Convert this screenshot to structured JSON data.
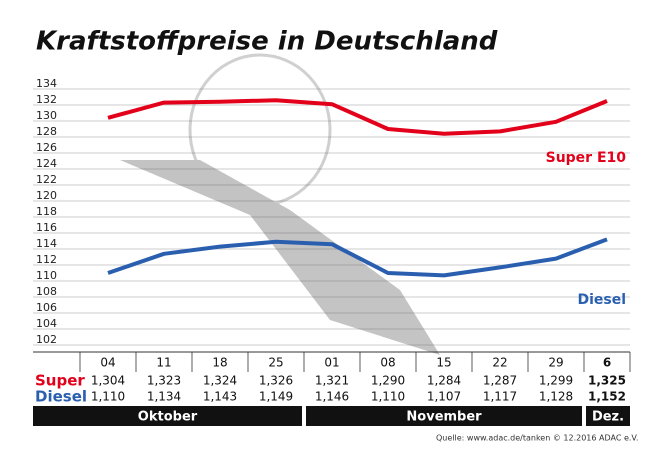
{
  "chart_data": {
    "type": "line",
    "title": "Kraftstoffpreise in Deutschland",
    "categories": [
      "04",
      "11",
      "18",
      "25",
      "01",
      "08",
      "15",
      "22",
      "29",
      "6"
    ],
    "months": [
      "Oktober",
      "November",
      "Dez."
    ],
    "row_labels": [
      "Super",
      "Diesel"
    ],
    "series": [
      {
        "name": "Super E10",
        "color": "#e2001a",
        "values": [
          130.4,
          132.3,
          132.4,
          132.6,
          132.1,
          129.0,
          128.4,
          128.7,
          129.9,
          132.5
        ],
        "value_labels": [
          "1,304",
          "1,323",
          "1,324",
          "1,326",
          "1,321",
          "1,290",
          "1,284",
          "1,287",
          "1,299",
          "1,325"
        ]
      },
      {
        "name": "Diesel",
        "color": "#2a5fb0",
        "values": [
          111.0,
          113.4,
          114.3,
          114.9,
          114.6,
          111.0,
          110.7,
          111.7,
          112.8,
          115.2
        ],
        "value_labels": [
          "1,110",
          "1,134",
          "1,143",
          "1,149",
          "1,146",
          "1,110",
          "1,107",
          "1,117",
          "1,128",
          "1,152"
        ]
      }
    ],
    "ylim": [
      102,
      134
    ],
    "yticks": [
      102,
      104,
      106,
      108,
      110,
      112,
      114,
      116,
      118,
      120,
      122,
      124,
      126,
      128,
      130,
      132,
      134
    ],
    "grid": true,
    "source": "Quelle: www.adac.de/tanken  © 12.2016  ADAC e.V."
  }
}
